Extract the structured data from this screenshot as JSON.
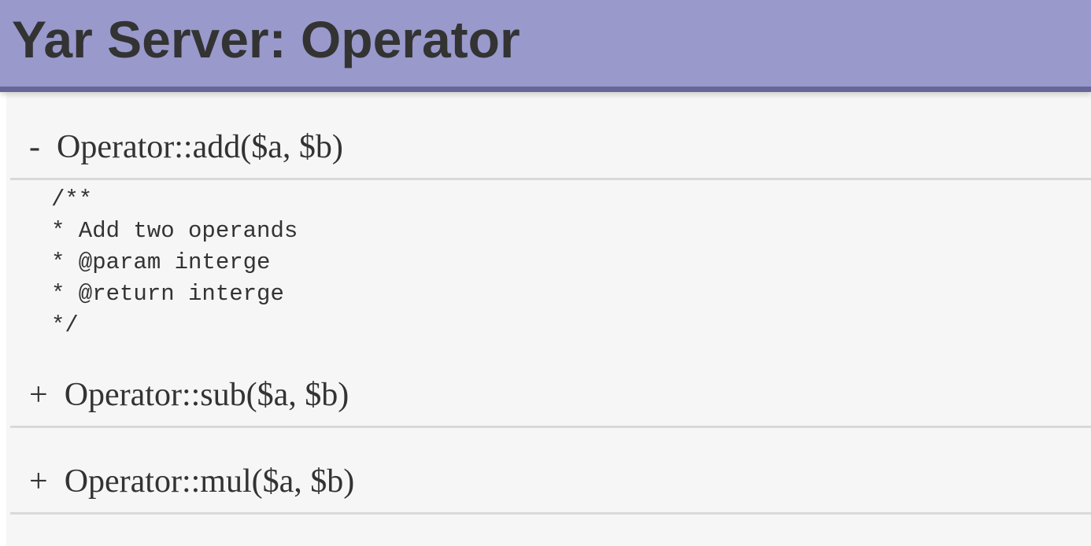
{
  "page": {
    "title": "Yar Server: Operator"
  },
  "colors": {
    "header_background": "#9999cc",
    "header_border": "#666699",
    "panel_background": "#f6f6f6",
    "page_background": "#ffffff",
    "text": "#333333",
    "divider": "#d9d9d9"
  },
  "methods": [
    {
      "toggle": "-",
      "state": "expanded",
      "signature": "Operator::add($a, $b)",
      "doc_lines": [
        "/**",
        "* Add two operands",
        "* @param interge",
        "* @return interge",
        "*/"
      ]
    },
    {
      "toggle": "+",
      "state": "collapsed",
      "signature": "Operator::sub($a, $b)",
      "doc_lines": []
    },
    {
      "toggle": "+",
      "state": "collapsed",
      "signature": "Operator::mul($a, $b)",
      "doc_lines": []
    }
  ]
}
